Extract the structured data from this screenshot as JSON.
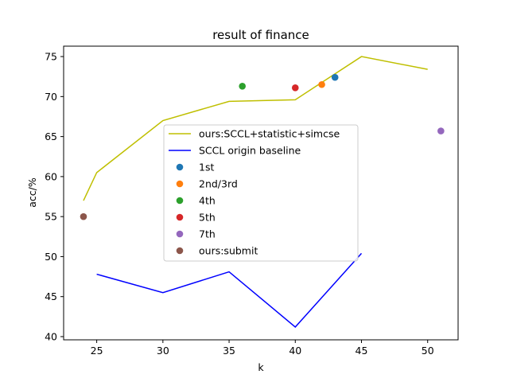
{
  "chart_data": {
    "type": "line",
    "title": "result of finance",
    "xlabel": "k",
    "ylabel": "acc/%",
    "xlim": [
      22.5,
      52.3
    ],
    "ylim": [
      39.6,
      76.3
    ],
    "xticks": [
      25,
      30,
      35,
      40,
      45,
      50
    ],
    "yticks": [
      40,
      45,
      50,
      55,
      60,
      65,
      70,
      75
    ],
    "grid": false,
    "legend_placement": "center",
    "series": [
      {
        "name": "ours:SCCL+statistic+simcse",
        "kind": "line",
        "color": "#bfbf00",
        "x": [
          24,
          25,
          30,
          35,
          40,
          45,
          50
        ],
        "y": [
          57.0,
          60.5,
          67.0,
          69.4,
          69.6,
          75.0,
          73.4
        ]
      },
      {
        "name": "SCCL origin baseline",
        "kind": "line",
        "color": "#0000ff",
        "x": [
          25,
          30,
          35,
          40,
          45
        ],
        "y": [
          47.8,
          45.5,
          48.1,
          41.2,
          50.4
        ]
      },
      {
        "name": "1st",
        "kind": "scatter",
        "color": "#1f77b4",
        "x": [
          43
        ],
        "y": [
          72.4
        ]
      },
      {
        "name": "2nd/3rd",
        "kind": "scatter",
        "color": "#ff7f0e",
        "x": [
          42
        ],
        "y": [
          71.5
        ]
      },
      {
        "name": "4th",
        "kind": "scatter",
        "color": "#2ca02c",
        "x": [
          36
        ],
        "y": [
          71.3
        ]
      },
      {
        "name": "5th",
        "kind": "scatter",
        "color": "#d62728",
        "x": [
          40
        ],
        "y": [
          71.1
        ]
      },
      {
        "name": "7th",
        "kind": "scatter",
        "color": "#9467bd",
        "x": [
          51
        ],
        "y": [
          65.7
        ]
      },
      {
        "name": "ours:submit",
        "kind": "scatter",
        "color": "#8c564b",
        "x": [
          24
        ],
        "y": [
          55.0
        ]
      }
    ]
  }
}
